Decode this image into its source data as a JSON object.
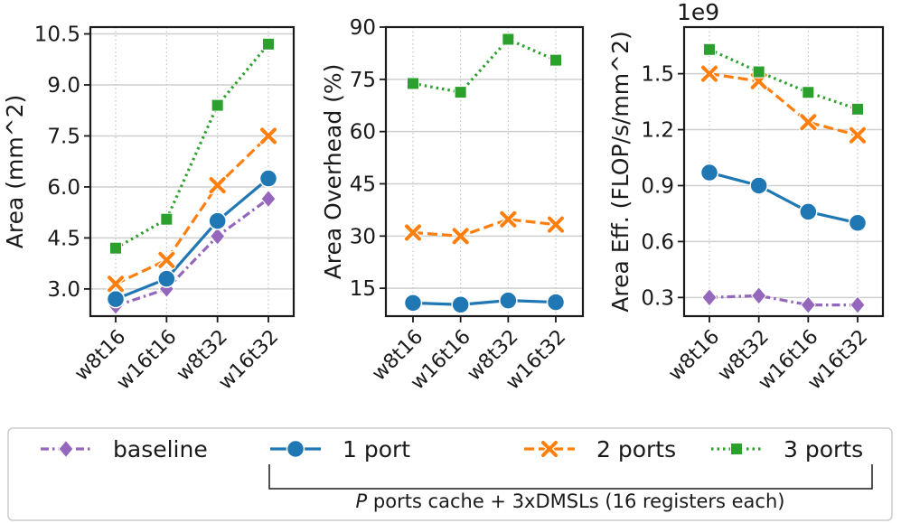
{
  "figure": {
    "legend": {
      "entries": [
        "baseline",
        "1 port",
        "2 ports",
        "3 ports"
      ],
      "bracket_prefix": "P",
      "bracket_suffix": " ports cache + 3xDMSLs (16 registers each)"
    }
  },
  "series_styles": [
    {
      "name": "baseline",
      "color": "#9467bd",
      "marker": "diamond",
      "dash": "dashdot"
    },
    {
      "name": "1 port",
      "color": "#1f77b4",
      "marker": "circle",
      "dash": "solid"
    },
    {
      "name": "2 ports",
      "color": "#ff7f0e",
      "marker": "x",
      "dash": "dashed"
    },
    {
      "name": "3 ports",
      "color": "#2ca02c",
      "marker": "square",
      "dash": "dotted"
    }
  ],
  "chart_data": [
    {
      "type": "line",
      "categories": [
        "w8t16",
        "w16t16",
        "w8t32",
        "w16t32"
      ],
      "ylabel": "Area (mm^2)",
      "ylim": [
        2.2,
        10.7
      ],
      "yticks": [
        "3.0",
        "4.5",
        "6.0",
        "7.5",
        "9.0",
        "10.5"
      ],
      "series": [
        {
          "name": "baseline",
          "values": [
            2.5,
            3.0,
            4.55,
            5.65
          ]
        },
        {
          "name": "1 port",
          "values": [
            2.7,
            3.3,
            5.0,
            6.25
          ]
        },
        {
          "name": "2 ports",
          "values": [
            3.15,
            3.85,
            6.05,
            7.5
          ]
        },
        {
          "name": "3 ports",
          "values": [
            4.2,
            5.05,
            8.4,
            10.2
          ]
        }
      ]
    },
    {
      "type": "line",
      "categories": [
        "w8t16",
        "w16t16",
        "w8t32",
        "w16t32"
      ],
      "ylabel": "Area Overhead (%)",
      "ylim": [
        7,
        90
      ],
      "yticks": [
        "15",
        "30",
        "45",
        "60",
        "75",
        "90"
      ],
      "series": [
        {
          "name": "1 port",
          "values": [
            10.8,
            10.3,
            11.5,
            11.0
          ]
        },
        {
          "name": "2 ports",
          "values": [
            31.0,
            30.0,
            34.8,
            33.3
          ]
        },
        {
          "name": "3 ports",
          "values": [
            73.8,
            71.3,
            86.5,
            80.5
          ]
        }
      ]
    },
    {
      "type": "line",
      "categories": [
        "w8t16",
        "w8t32",
        "w16t16",
        "w16t32"
      ],
      "ylabel": "Area Eff. (FLOP/s/mm^2)",
      "yscale_label": "1e9",
      "ylim": [
        0.2,
        1.75
      ],
      "yticks": [
        "0.3",
        "0.6",
        "0.9",
        "1.2",
        "1.5"
      ],
      "series": [
        {
          "name": "baseline",
          "values": [
            0.3,
            0.31,
            0.26,
            0.26
          ]
        },
        {
          "name": "1 port",
          "values": [
            0.97,
            0.9,
            0.76,
            0.7
          ]
        },
        {
          "name": "2 ports",
          "values": [
            1.5,
            1.46,
            1.24,
            1.17
          ]
        },
        {
          "name": "3 ports",
          "values": [
            1.63,
            1.51,
            1.4,
            1.31
          ]
        }
      ]
    }
  ]
}
